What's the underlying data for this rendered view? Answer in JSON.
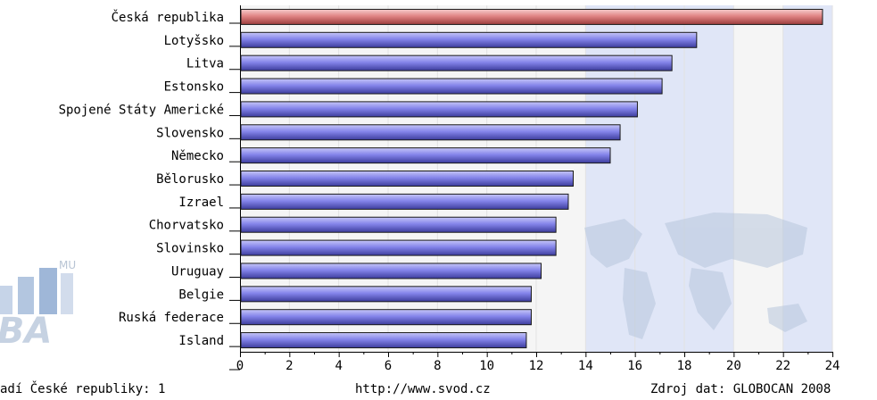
{
  "chart_data": {
    "type": "bar",
    "orientation": "horizontal",
    "categories": [
      "Česká republika",
      "Lotyšsko",
      "Litva",
      "Estonsko",
      "Spojené Státy Americké",
      "Slovensko",
      "Německo",
      "Bělorusko",
      "Izrael",
      "Chorvatsko",
      "Slovinsko",
      "Uruguay",
      "Belgie",
      "Ruská federace",
      "Island"
    ],
    "values": [
      23.6,
      18.5,
      17.5,
      17.1,
      16.1,
      15.4,
      15.0,
      13.5,
      13.3,
      12.8,
      12.8,
      12.2,
      11.8,
      11.8,
      11.6
    ],
    "highlight_index": 0,
    "xlim": [
      0,
      24
    ],
    "xticks": [
      0,
      2,
      4,
      6,
      8,
      10,
      12,
      14,
      16,
      18,
      20,
      22,
      24
    ],
    "grid": true,
    "colors": {
      "bar": "#8080e8",
      "bar_highlight": "#e08080",
      "band_light": "#f5f5f5",
      "band_blue": "#e0e6f7"
    }
  },
  "footer": {
    "left": "adí České republiky: 1",
    "center": "http://www.svod.cz",
    "right": "Zdroj dat: GLOBOCAN 2008"
  },
  "logo": {
    "superscript": "MU",
    "text": "IBA"
  }
}
